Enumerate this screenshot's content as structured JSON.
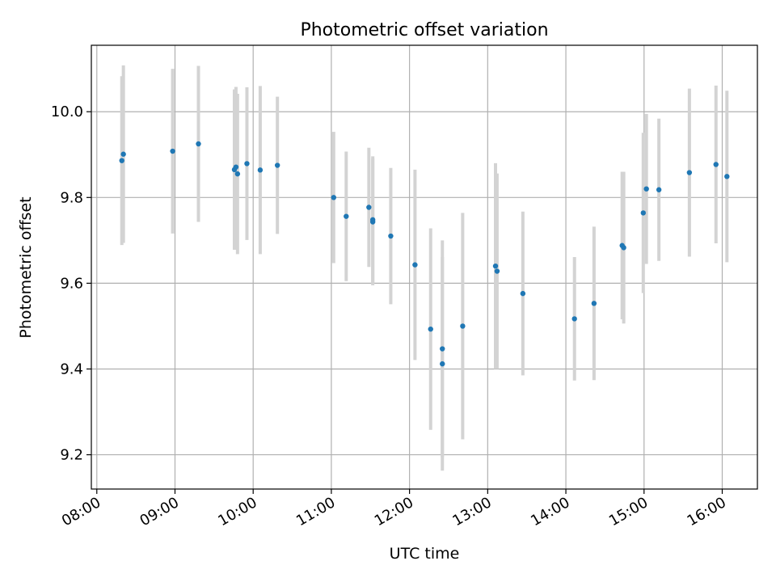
{
  "chart_data": {
    "type": "scatter",
    "title": "Photometric offset variation",
    "xlabel": "UTC time",
    "ylabel": "Photometric offset",
    "grid": true,
    "xlim": [
      7.93,
      16.45
    ],
    "ylim": [
      9.12,
      10.155
    ],
    "x_ticks": [
      {
        "value": 8,
        "label": "08:00"
      },
      {
        "value": 9,
        "label": "09:00"
      },
      {
        "value": 10,
        "label": "10:00"
      },
      {
        "value": 11,
        "label": "11:00"
      },
      {
        "value": 12,
        "label": "12:00"
      },
      {
        "value": 13,
        "label": "13:00"
      },
      {
        "value": 14,
        "label": "14:00"
      },
      {
        "value": 15,
        "label": "15:00"
      },
      {
        "value": 16,
        "label": "16:00"
      }
    ],
    "y_ticks": [
      {
        "value": 9.2,
        "label": "9.2"
      },
      {
        "value": 9.4,
        "label": "9.4"
      },
      {
        "value": 9.6,
        "label": "9.6"
      },
      {
        "value": 9.8,
        "label": "9.8"
      },
      {
        "value": 10.0,
        "label": "10.0"
      }
    ],
    "marker_color": "#1f77b4",
    "errorbar_color": "#d3d3d3",
    "points": [
      {
        "x": 8.32,
        "y": 9.886,
        "err": 0.197
      },
      {
        "x": 8.34,
        "y": 9.901,
        "err": 0.207
      },
      {
        "x": 8.97,
        "y": 9.908,
        "err": 0.192
      },
      {
        "x": 9.3,
        "y": 9.925,
        "err": 0.182
      },
      {
        "x": 9.76,
        "y": 9.865,
        "err": 0.187
      },
      {
        "x": 9.78,
        "y": 9.871,
        "err": 0.187
      },
      {
        "x": 9.8,
        "y": 9.855,
        "err": 0.187
      },
      {
        "x": 9.92,
        "y": 9.879,
        "err": 0.178
      },
      {
        "x": 10.09,
        "y": 9.864,
        "err": 0.196
      },
      {
        "x": 10.31,
        "y": 9.875,
        "err": 0.16
      },
      {
        "x": 11.03,
        "y": 9.8,
        "err": 0.153
      },
      {
        "x": 11.19,
        "y": 9.756,
        "err": 0.151
      },
      {
        "x": 11.48,
        "y": 9.777,
        "err": 0.139
      },
      {
        "x": 11.53,
        "y": 9.748,
        "err": 0.148
      },
      {
        "x": 11.53,
        "y": 9.743,
        "err": 0.148
      },
      {
        "x": 11.76,
        "y": 9.71,
        "err": 0.159
      },
      {
        "x": 12.07,
        "y": 9.643,
        "err": 0.222
      },
      {
        "x": 12.27,
        "y": 9.493,
        "err": 0.235
      },
      {
        "x": 12.42,
        "y": 9.447,
        "err": 0.253
      },
      {
        "x": 12.42,
        "y": 9.412,
        "err": 0.249
      },
      {
        "x": 12.68,
        "y": 9.5,
        "err": 0.264
      },
      {
        "x": 13.1,
        "y": 9.64,
        "err": 0.24
      },
      {
        "x": 13.12,
        "y": 9.628,
        "err": 0.228
      },
      {
        "x": 13.45,
        "y": 9.576,
        "err": 0.191
      },
      {
        "x": 14.11,
        "y": 9.517,
        "err": 0.144
      },
      {
        "x": 14.36,
        "y": 9.553,
        "err": 0.179
      },
      {
        "x": 14.72,
        "y": 9.688,
        "err": 0.172
      },
      {
        "x": 14.74,
        "y": 9.683,
        "err": 0.177
      },
      {
        "x": 14.99,
        "y": 9.764,
        "err": 0.187
      },
      {
        "x": 15.03,
        "y": 9.82,
        "err": 0.175
      },
      {
        "x": 15.19,
        "y": 9.818,
        "err": 0.166
      },
      {
        "x": 15.58,
        "y": 9.858,
        "err": 0.196
      },
      {
        "x": 15.92,
        "y": 9.877,
        "err": 0.184
      },
      {
        "x": 16.06,
        "y": 9.849,
        "err": 0.2
      }
    ]
  }
}
